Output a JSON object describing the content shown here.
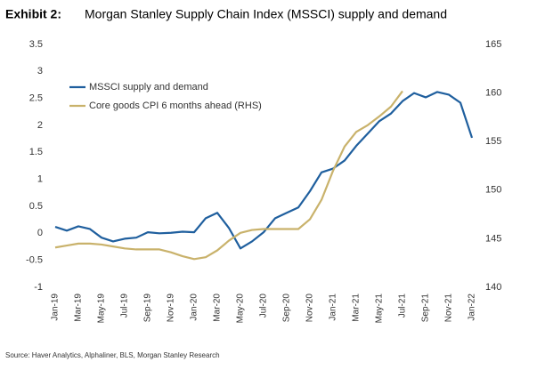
{
  "chart_data": {
    "type": "line",
    "title_label": "Exhibit 2:",
    "title": "Morgan Stanley Supply Chain Index (MSSCI) supply and demand",
    "source": "Source: Haver Analytics, Alphaliner, BLS, Morgan Stanley Research",
    "categories": [
      "Jan-19",
      null,
      "Mar-19",
      null,
      "May-19",
      null,
      "Jul-19",
      null,
      "Sep-19",
      null,
      "Nov-19",
      null,
      "Jan-20",
      null,
      "Mar-20",
      null,
      "May-20",
      null,
      "Jul-20",
      null,
      "Sep-20",
      null,
      "Nov-20",
      null,
      "Jan-21",
      null,
      "Mar-21",
      null,
      "May-21",
      null,
      "Jul-21",
      null,
      "Sep-21",
      null,
      "Nov-21",
      null,
      "Jan-22"
    ],
    "series": [
      {
        "name": "MSSCI supply and demand",
        "color": "#1f5f9e",
        "values": [
          0.12,
          0.05,
          0.13,
          0.08,
          -0.08,
          -0.15,
          -0.1,
          -0.08,
          0.02,
          0.0,
          0.01,
          0.03,
          0.02,
          0.28,
          0.38,
          0.1,
          -0.28,
          -0.15,
          0.02,
          0.28,
          0.38,
          0.48,
          0.78,
          1.13,
          1.2,
          1.35,
          1.62,
          1.85,
          2.08,
          2.22,
          2.45,
          2.6,
          2.52,
          2.62,
          2.57,
          2.42,
          1.77
        ]
      },
      {
        "name": "Core goods CPI 6 months ahead (RHS)",
        "color": "#c9b26b",
        "axis": "y2",
        "values": [
          144.1,
          144.3,
          144.5,
          144.5,
          144.4,
          144.2,
          144.0,
          143.9,
          143.9,
          143.9,
          143.6,
          143.2,
          142.9,
          143.1,
          143.8,
          144.8,
          145.6,
          145.9,
          146.0,
          146.0,
          146.0,
          146.0,
          147.0,
          149.0,
          152.0,
          154.5,
          156.0,
          156.7,
          157.6,
          158.6,
          160.2,
          null,
          null,
          null,
          null,
          null,
          null
        ]
      }
    ],
    "ylim": [
      -1,
      3.5
    ],
    "yticks": [
      -1,
      -0.5,
      0,
      0.5,
      1,
      1.5,
      2,
      2.5,
      3,
      3.5
    ],
    "y2lim": [
      140,
      165
    ],
    "y2ticks": [
      140,
      145,
      150,
      155,
      160,
      165
    ],
    "grid": false,
    "legend": "upper left"
  }
}
